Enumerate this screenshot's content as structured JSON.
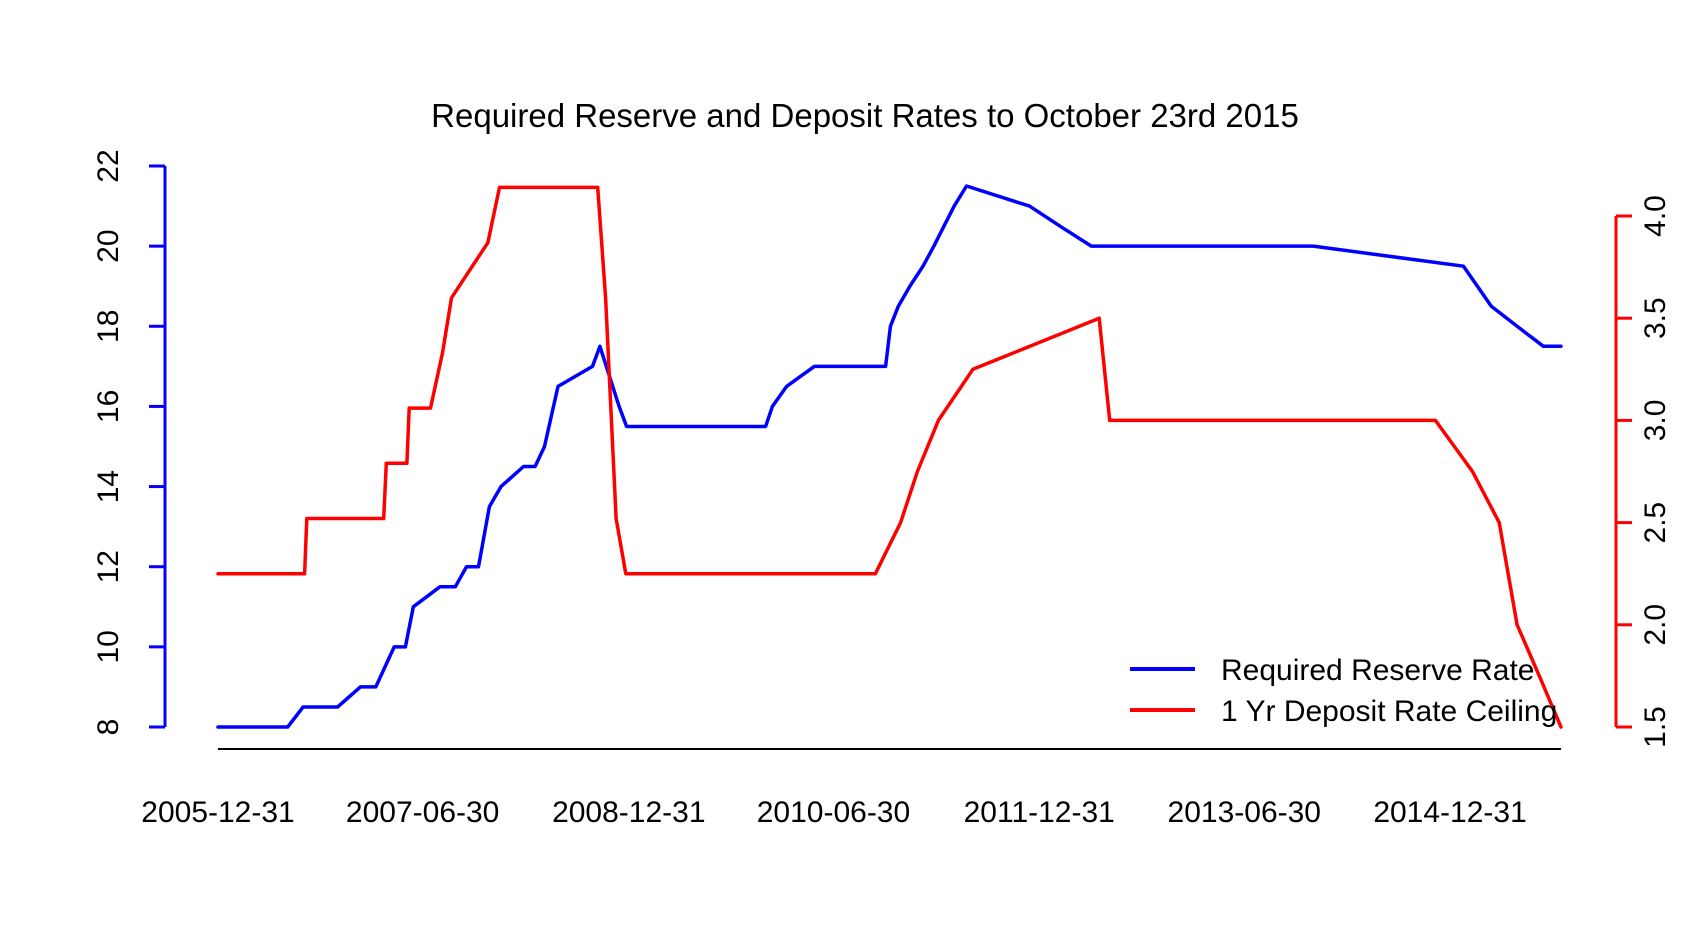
{
  "chart_data": {
    "type": "line",
    "title": "Required Reserve and Deposit Rates to October 23rd 2015",
    "xlabel": "",
    "ylabel_left": "",
    "ylabel_right": "",
    "x_ticks": [
      "2005-12-31",
      "2007-06-30",
      "2008-12-31",
      "2010-06-30",
      "2011-12-31",
      "2013-06-30",
      "2014-12-31"
    ],
    "x_range": [
      "2005-12-31",
      "2015-10-23"
    ],
    "left_axis": {
      "ylim": [
        8,
        22
      ],
      "ticks": [
        "8",
        "10",
        "12",
        "14",
        "16",
        "18",
        "20",
        "22"
      ],
      "color": "#0000ff"
    },
    "right_axis": {
      "ylim": [
        1.5,
        4.0
      ],
      "ticks": [
        "1.5",
        "2.0",
        "2.5",
        "3.0",
        "3.5",
        "4.0"
      ],
      "color": "#ff0000"
    },
    "grid": false,
    "legend": {
      "position": "bottom-right"
    },
    "series": [
      {
        "name": "Required Reserve Rate",
        "axis": "left",
        "color": "#0000ff",
        "x": [
          "2005-12-31",
          "2006-07-05",
          "2006-08-15",
          "2006-11-15",
          "2007-01-15",
          "2007-02-25",
          "2007-04-15",
          "2007-05-15",
          "2007-06-05",
          "2007-08-15",
          "2007-09-25",
          "2007-10-25",
          "2007-11-26",
          "2007-12-25",
          "2008-01-25",
          "2008-03-25",
          "2008-04-25",
          "2008-05-20",
          "2008-06-25",
          "2008-09-25",
          "2008-10-15",
          "2008-12-05",
          "2008-12-25",
          "2009-12-31",
          "2010-01-18",
          "2010-02-25",
          "2010-05-10",
          "2010-11-16",
          "2010-11-29",
          "2010-12-20",
          "2011-01-20",
          "2011-02-24",
          "2011-03-25",
          "2011-04-21",
          "2011-05-18",
          "2011-06-20",
          "2011-12-05",
          "2012-02-24",
          "2012-05-18",
          "2013-12-31",
          "2015-02-05",
          "2015-04-20",
          "2015-06-28",
          "2015-09-06",
          "2015-10-23"
        ],
        "values": [
          8,
          8,
          8.5,
          8.5,
          9,
          9,
          10,
          10,
          11,
          11.5,
          11.5,
          12,
          12,
          13.5,
          14,
          14.5,
          14.5,
          15,
          16.5,
          17,
          17.5,
          16,
          15.5,
          15.5,
          16,
          16.5,
          17,
          17,
          18,
          18.5,
          19,
          19.5,
          20,
          20.5,
          21,
          21.5,
          21,
          20.5,
          20,
          20,
          19.5,
          18.5,
          18,
          17.5,
          17.5
        ]
      },
      {
        "name": "1 Yr Deposit Rate Ceiling",
        "axis": "right",
        "color": "#ff0000",
        "x": [
          "2005-12-31",
          "2006-08-19",
          "2006-08-25",
          "2007-03-18",
          "2007-03-25",
          "2007-05-19",
          "2007-05-25",
          "2007-07-21",
          "2007-08-22",
          "2007-09-15",
          "2007-12-21",
          "2008-01-21",
          "2008-10-09",
          "2008-10-30",
          "2008-11-27",
          "2008-12-23",
          "2010-10-20",
          "2010-12-26",
          "2011-02-09",
          "2011-04-06",
          "2011-07-07",
          "2012-06-08",
          "2012-07-06",
          "2014-11-22",
          "2015-03-01",
          "2015-05-11",
          "2015-06-28",
          "2015-08-26",
          "2015-10-23"
        ],
        "values": [
          2.25,
          2.25,
          2.52,
          2.52,
          2.79,
          2.79,
          3.06,
          3.06,
          3.33,
          3.6,
          3.87,
          4.14,
          4.14,
          3.6,
          2.52,
          2.25,
          2.25,
          2.5,
          2.75,
          3.0,
          3.25,
          3.5,
          3.0,
          3.0,
          2.75,
          2.5,
          2.0,
          1.75,
          1.5
        ]
      }
    ]
  }
}
